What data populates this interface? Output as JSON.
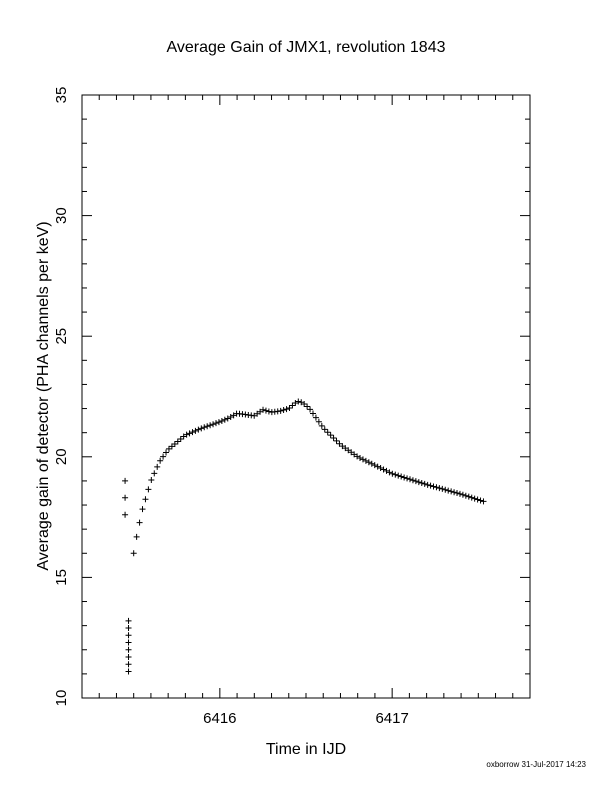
{
  "chart_data": {
    "type": "scatter",
    "title": "Average Gain of JMX1, revolution 1843",
    "xlabel": "Time in IJD",
    "ylabel": "Average gain of detector (PHA channels per keV)",
    "xlim": [
      6415.2,
      6417.8
    ],
    "ylim": [
      10,
      35
    ],
    "xticks": [
      6416,
      6417
    ],
    "yticks": [
      10,
      15,
      20,
      25,
      30,
      35
    ],
    "marker": "+",
    "grid": false,
    "outliers": {
      "x": [
        6415.45,
        6415.45,
        6415.45,
        6415.47,
        6415.47,
        6415.47,
        6415.47,
        6415.47,
        6415.47,
        6415.47,
        6415.47
      ],
      "y": [
        19.0,
        18.3,
        17.6,
        13.2,
        12.9,
        12.6,
        12.3,
        12.0,
        11.7,
        11.4,
        11.1
      ]
    },
    "curve_knots": {
      "x": [
        6415.5,
        6415.52,
        6415.55,
        6415.6,
        6415.65,
        6415.7,
        6415.75,
        6415.8,
        6415.9,
        6416.0,
        6416.05,
        6416.1,
        6416.15,
        6416.2,
        6416.25,
        6416.3,
        6416.35,
        6416.4,
        6416.45,
        6416.48,
        6416.52,
        6416.6,
        6416.7,
        6416.8,
        6416.9,
        6417.0,
        6417.2,
        6417.4,
        6417.53
      ],
      "y": [
        16.0,
        16.8,
        17.8,
        19.0,
        19.8,
        20.3,
        20.6,
        20.9,
        21.2,
        21.45,
        21.6,
        21.8,
        21.75,
        21.7,
        21.95,
        21.85,
        21.9,
        22.0,
        22.3,
        22.25,
        22.0,
        21.2,
        20.5,
        20.0,
        19.65,
        19.3,
        18.85,
        18.45,
        18.15
      ]
    },
    "curve_point_count": 120
  },
  "footer": {
    "stamp": "oxborrow 31-Jul-2017 14:23"
  }
}
